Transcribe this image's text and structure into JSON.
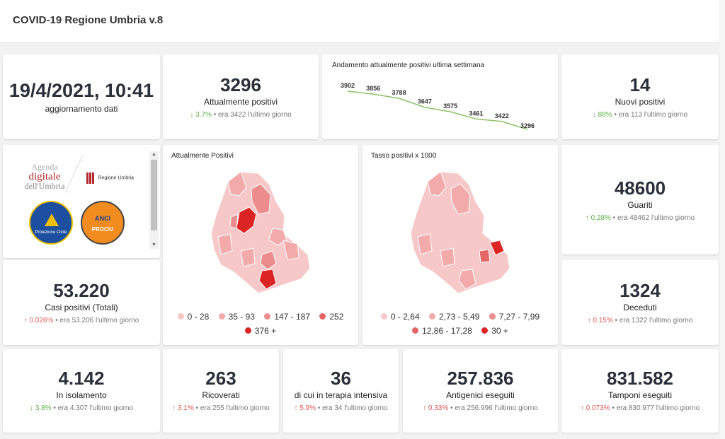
{
  "header": {
    "title": "COVID-19 Regione Umbria v.8"
  },
  "update": {
    "datetime": "19/4/2021, 10:41",
    "label": "aggiornamento dati"
  },
  "kpis": {
    "attualmente_positivi": {
      "value": "3296",
      "label": "Attualmente positivi",
      "pct": "3.7%",
      "prev": "era 3422 l'ultimo giorno",
      "direction": "down",
      "color": "#5db34a"
    },
    "nuovi_positivi": {
      "value": "14",
      "label": "Nuovi positivi",
      "pct": "88%",
      "prev": "era 113 l'ultimo giorno",
      "direction": "down",
      "color": "#5db34a"
    },
    "guariti": {
      "value": "48600",
      "label": "Guariti",
      "pct": "0.28%",
      "prev": "era 48462 l'ultimo giorno",
      "direction": "up",
      "color": "#5db34a"
    },
    "casi_totali": {
      "value": "53.220",
      "label": "Casi positivi (Totali)",
      "pct": "0.026%",
      "prev": "era 53.206 l'ultimo giorno",
      "direction": "up",
      "color": "#e05a5a"
    },
    "deceduti": {
      "value": "1324",
      "label": "Deceduti",
      "pct": "0.15%",
      "prev": "era 1322 l'ultimo giorno",
      "direction": "up",
      "color": "#e05a5a"
    },
    "isolamento": {
      "value": "4.142",
      "label": "In isolamento",
      "pct": "3.8%",
      "prev": "era 4.307 l'ultimo giorno",
      "direction": "down",
      "color": "#5db34a"
    },
    "ricoverati": {
      "value": "263",
      "label": "Ricoverati",
      "pct": "3.1%",
      "prev": "era 255 l'ultimo giorno",
      "direction": "up",
      "color": "#e05a5a"
    },
    "terapia_intensiva": {
      "value": "36",
      "label": "di cui in terapia intensiva",
      "pct": "5.9%",
      "prev": "era 34 l'ultimo giorno",
      "direction": "up",
      "color": "#e05a5a"
    },
    "antigenici": {
      "value": "257.836",
      "label": "Antigenici eseguiti",
      "pct": "0.33%",
      "prev": "era 256.996 l'ultimo giorno",
      "direction": "up",
      "color": "#e05a5a"
    },
    "tamponi": {
      "value": "831.582",
      "label": "Tamponi eseguiti",
      "pct": "0.073%",
      "prev": "era 830.977 l'ultimo giorno",
      "direction": "up",
      "color": "#e05a5a"
    }
  },
  "logos": {
    "agenda": [
      "Agenda",
      "digitale",
      "dell'Umbria"
    ],
    "regione": "Regione Umbria",
    "protezione": "Protezione Civile",
    "anci": "ANCI",
    "prociv": "PROCIV"
  },
  "map_positivi": {
    "title": "Attualmente Positivi",
    "legend": [
      {
        "label": "0 - 28",
        "color": "#f6c8c8"
      },
      {
        "label": "35 - 93",
        "color": "#f2aaaa"
      },
      {
        "label": "147 - 187",
        "color": "#ec8c8c"
      },
      {
        "label": "252",
        "color": "#e56565"
      },
      {
        "label": "376 +",
        "color": "#dd2424"
      }
    ]
  },
  "map_tasso": {
    "title": "Tasso positivi x 1000",
    "legend": [
      {
        "label": "0 - 2,64",
        "color": "#f6c8c8"
      },
      {
        "label": "2,73 - 5,49",
        "color": "#f2aaaa"
      },
      {
        "label": "7,27 - 7,99",
        "color": "#ec8c8c"
      },
      {
        "label": "12,86 - 17,28",
        "color": "#e56565"
      },
      {
        "label": "30 +",
        "color": "#dd2424"
      }
    ]
  },
  "chart_data": {
    "type": "line",
    "title": "Andamento attualmente positivi ultima settimana",
    "values": [
      3902,
      3856,
      3788,
      3647,
      3575,
      3461,
      3422,
      3296
    ],
    "data_labels": [
      "3902",
      "3856",
      "3788",
      "3647",
      "3575",
      "3461",
      "3422",
      "3296"
    ],
    "line_color": "#8cc266",
    "ylim": [
      3296,
      3902
    ],
    "grid": false
  }
}
